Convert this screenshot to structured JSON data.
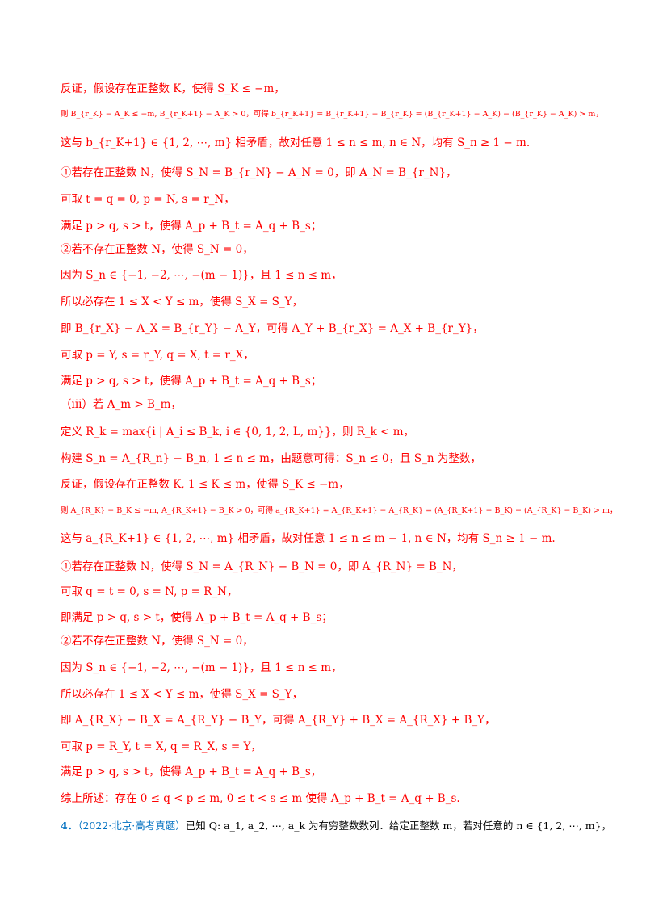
{
  "lines": [
    "反证，假设存在正整数 K，使得 S_K ≤ −m，",
    "则 B_{r_K} − A_K ≤ −m, B_{r_K+1} − A_K > 0，可得 b_{r_K+1} = B_{r_K+1} − B_{r_K} = (B_{r_K+1} − A_K) − (B_{r_K} − A_K) > m，",
    "这与 b_{r_K+1} ∈ {1, 2, ⋯, m} 相矛盾，故对任意 1 ≤ n ≤ m, n ∈ N，均有 S_n ≥ 1 − m.",
    "①若存在正整数 N，使得 S_N = B_{r_N} − A_N = 0，即 A_N = B_{r_N}，",
    "可取 t = q = 0, p = N, s = r_N，",
    "满足 p > q, s > t，使得 A_p + B_t = A_q + B_s；",
    "②若不存在正整数 N，使得 S_N = 0，",
    "因为 S_n ∈ {−1, −2, ⋯, −(m − 1)}，且 1 ≤ n ≤ m，",
    "所以必存在 1 ≤ X < Y ≤ m，使得 S_X = S_Y，",
    "即 B_{r_X} − A_X = B_{r_Y} − A_Y，可得 A_Y + B_{r_X} = A_X + B_{r_Y}，",
    "可取 p = Y, s = r_Y, q = X, t = r_X，",
    "满足 p > q, s > t，使得 A_p + B_t = A_q + B_s；",
    "（iii）若 A_m > B_m，",
    "定义 R_k = max{i | A_i ≤ B_k, i ∈ {0, 1, 2, L, m}}，则 R_k < m，",
    "构建 S_n = A_{R_n} − B_n, 1 ≤ n ≤ m，由题意可得：S_n ≤ 0，且 S_n 为整数，",
    "反证，假设存在正整数 K, 1 ≤ K ≤ m，使得 S_K ≤ −m，",
    "则 A_{R_K} − B_K ≤ −m, A_{R_K+1} − B_K > 0，可得 a_{R_K+1} = A_{R_K+1} − A_{R_K} = (A_{R_K+1} − B_K) − (A_{R_K} − B_K) > m，",
    "这与 a_{R_K+1} ∈ {1, 2, ⋯, m} 相矛盾，故对任意 1 ≤ n ≤ m − 1, n ∈ N，均有 S_n ≥ 1 − m.",
    "①若存在正整数 N，使得 S_N = A_{R_N} − B_N = 0，即 A_{R_N} = B_N，",
    "可取 q = t = 0, s = N, p = R_N，",
    "即满足 p > q, s > t，使得 A_p + B_t = A_q + B_s；",
    "②若不存在正整数 N，使得 S_N = 0，",
    "因为 S_n ∈ {−1, −2, ⋯, −(m − 1)}，且 1 ≤ n ≤ m，",
    "所以必存在 1 ≤ X < Y ≤ m，使得 S_X = S_Y，",
    "即 A_{R_X} − B_X = A_{R_Y} − B_Y，可得 A_{R_Y} + B_X = A_{R_X} + B_Y，",
    "可取 p = R_Y, t = X, q = R_X, s = Y，",
    "满足 p > q, s > t，使得 A_p + B_t = A_q + B_s，",
    "综上所述：存在 0 ≤ q < p ≤ m, 0 ≤ t < s ≤ m 使得 A_p + B_t = A_q + B_s."
  ],
  "problem": {
    "number": "4．",
    "source": "（2022·北京·高考真题）",
    "text": "已知 Q: a_1, a_2, ⋯, a_k 为有穷整数数列．给定正整数 m，若对任意的 n ∈ {1, 2, ⋯, m}，"
  }
}
